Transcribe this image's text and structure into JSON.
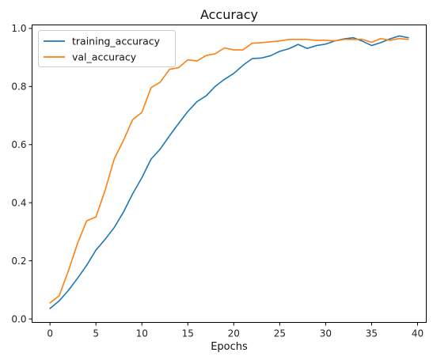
{
  "chart_data": {
    "type": "line",
    "title": "Accuracy",
    "xlabel": "Epochs",
    "ylabel": "",
    "xlim": [
      -1.95,
      40.95
    ],
    "ylim": [
      -0.012,
      1.012
    ],
    "xticks": [
      0,
      5,
      10,
      15,
      20,
      25,
      30,
      35,
      40
    ],
    "yticks": [
      0.0,
      0.2,
      0.4,
      0.6,
      0.8,
      1.0
    ],
    "ytick_labels": [
      "0.0",
      "0.2",
      "0.4",
      "0.6",
      "0.8",
      "1.0"
    ],
    "grid": false,
    "legend_position": "top-left",
    "x": [
      0,
      1,
      2,
      3,
      4,
      5,
      6,
      7,
      8,
      9,
      10,
      11,
      12,
      13,
      14,
      15,
      16,
      17,
      18,
      19,
      20,
      21,
      22,
      23,
      24,
      25,
      26,
      27,
      28,
      29,
      30,
      31,
      32,
      33,
      34,
      35,
      36,
      37,
      38,
      39
    ],
    "series": [
      {
        "name": "training_accuracy",
        "color": "#1f77b4",
        "values": [
          0.036,
          0.062,
          0.098,
          0.14,
          0.185,
          0.237,
          0.274,
          0.315,
          0.368,
          0.431,
          0.486,
          0.55,
          0.585,
          0.63,
          0.673,
          0.714,
          0.748,
          0.768,
          0.801,
          0.825,
          0.845,
          0.873,
          0.896,
          0.898,
          0.906,
          0.921,
          0.93,
          0.945,
          0.931,
          0.941,
          0.946,
          0.957,
          0.964,
          0.968,
          0.956,
          0.941,
          0.951,
          0.964,
          0.974,
          0.968
        ]
      },
      {
        "name": "val_accuracy",
        "color": "#ff7f0e",
        "values": [
          0.055,
          0.08,
          0.165,
          0.26,
          0.338,
          0.351,
          0.443,
          0.551,
          0.615,
          0.686,
          0.711,
          0.796,
          0.815,
          0.859,
          0.865,
          0.892,
          0.888,
          0.907,
          0.913,
          0.933,
          0.926,
          0.926,
          0.949,
          0.951,
          0.954,
          0.957,
          0.962,
          0.962,
          0.962,
          0.959,
          0.959,
          0.957,
          0.962,
          0.962,
          0.962,
          0.952,
          0.965,
          0.959,
          0.965,
          0.962
        ]
      }
    ]
  }
}
